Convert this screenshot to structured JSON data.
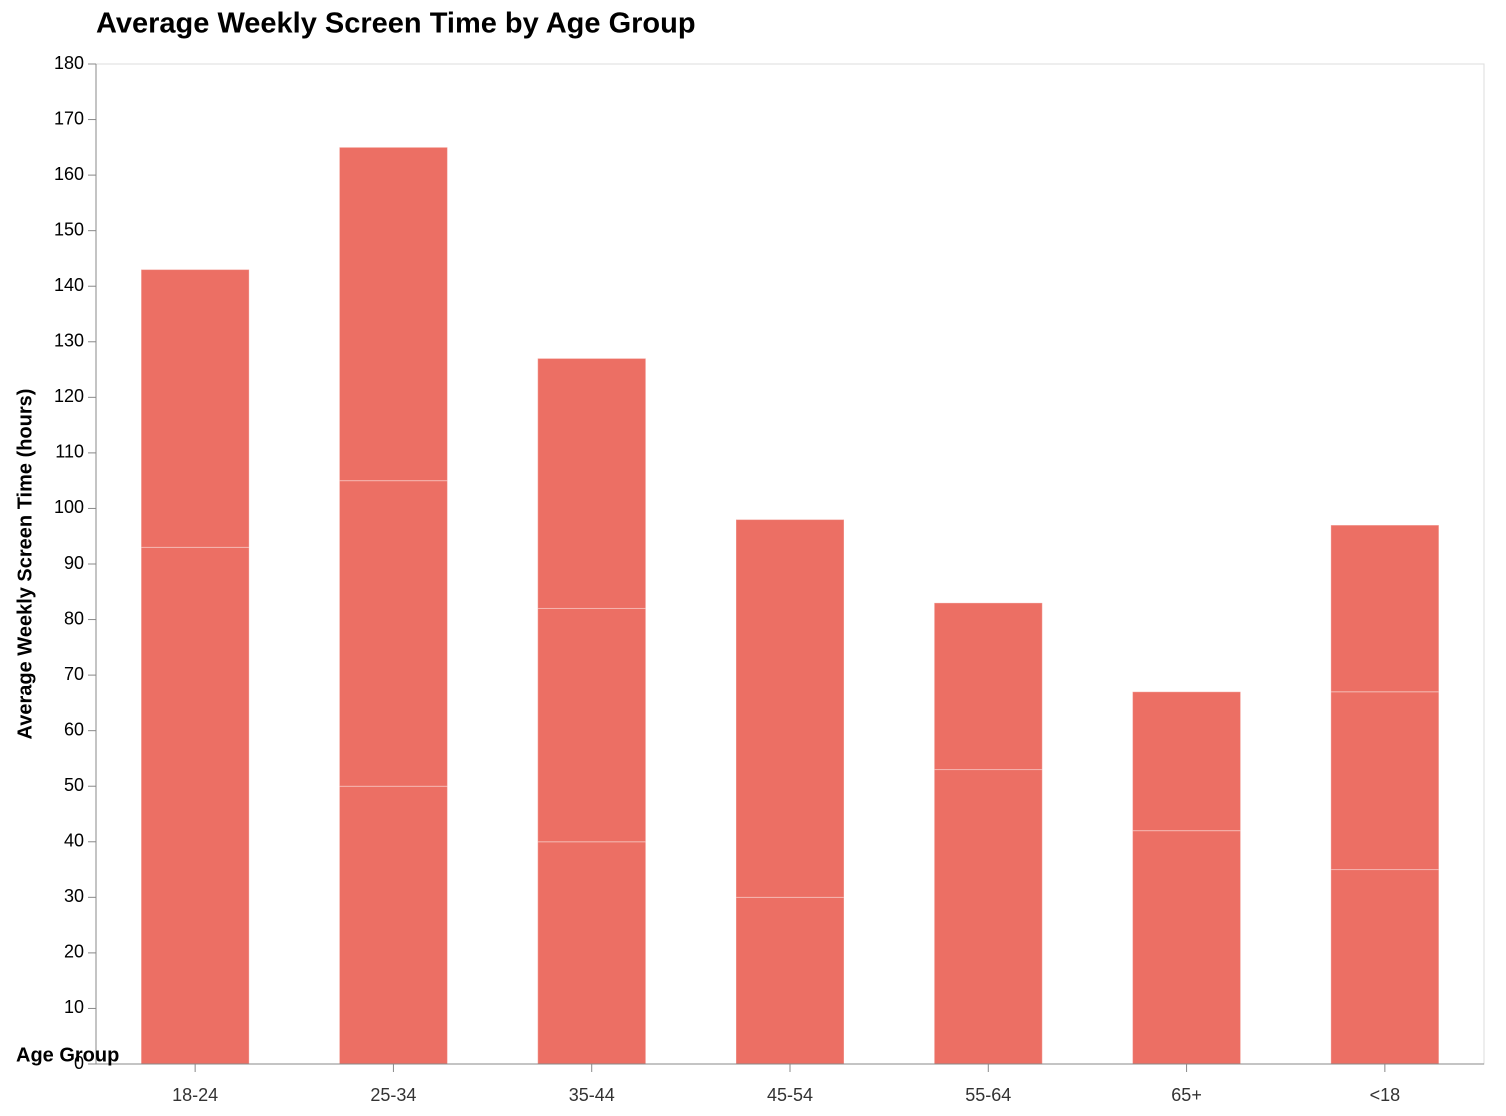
{
  "chart_data": {
    "type": "bar",
    "stacked": true,
    "title": "Average Weekly Screen Time by Age Group",
    "x_label": "Age Group",
    "y_label": "Average Weekly Screen Time (hours)",
    "categories": [
      "18-24",
      "25-34",
      "35-44",
      "45-54",
      "55-64",
      "65+",
      "<18"
    ],
    "series": [
      {
        "color": "#ec6f64",
        "values": [
          93,
          50,
          40,
          30,
          53,
          42,
          35
        ]
      },
      {
        "color": "#ec6f64",
        "values": [
          50,
          55,
          42,
          68,
          30,
          25,
          32
        ]
      },
      {
        "color": "#ec6f64",
        "values": [
          null,
          60,
          45,
          null,
          null,
          null,
          30
        ]
      }
    ],
    "ylim": [
      0,
      180
    ],
    "yticks": [
      0,
      10,
      20,
      30,
      40,
      50,
      60,
      70,
      80,
      90,
      100,
      110,
      120,
      130,
      140,
      150,
      160,
      170,
      180
    ],
    "grid": false
  }
}
